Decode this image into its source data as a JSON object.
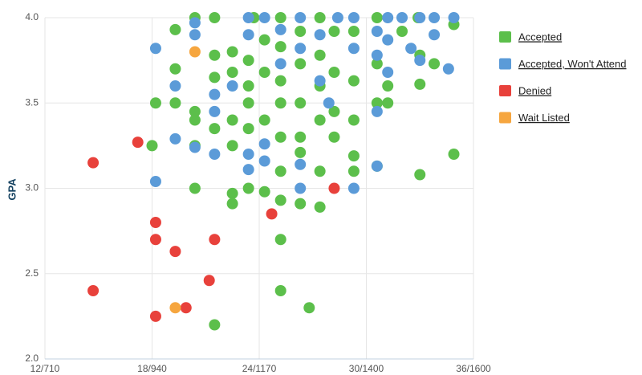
{
  "chart_data": {
    "type": "scatter",
    "y_label": "GPA",
    "xlim": [
      12,
      36
    ],
    "xticks": [
      {
        "value": 12,
        "label": "12/710"
      },
      {
        "value": 18,
        "label": "18/940"
      },
      {
        "value": 24,
        "label": "24/1170"
      },
      {
        "value": 30,
        "label": "30/1400"
      },
      {
        "value": 36,
        "label": "36/1600"
      }
    ],
    "ylim": [
      2,
      4
    ],
    "yticks": [
      {
        "value": 2,
        "label": "2.0"
      },
      2.5,
      {
        "value": 3,
        "label": "3.0"
      },
      3.5,
      {
        "value": 4,
        "label": "4.0"
      }
    ],
    "grid": true,
    "legend": "right",
    "series": [
      {
        "name": "Accepted",
        "color": "#5cbf4b",
        "x": [
          18.0,
          18.2,
          19.3,
          19.3,
          19.3,
          20.4,
          20.4,
          20.4,
          20.4,
          20.4,
          21.5,
          21.5,
          21.5,
          21.5,
          21.5,
          22.5,
          22.5,
          22.5,
          22.5,
          22.5,
          22.5,
          23.4,
          23.4,
          23.4,
          23.4,
          23.4,
          23.7,
          24.3,
          24.3,
          24.3,
          24.3,
          25.2,
          25.2,
          25.2,
          25.2,
          25.2,
          25.2,
          25.2,
          25.2,
          25.2,
          26.3,
          26.3,
          26.3,
          26.3,
          26.3,
          26.3,
          26.8,
          27.4,
          27.4,
          27.4,
          27.4,
          27.4,
          27.4,
          28.2,
          28.2,
          28.2,
          28.2,
          29.3,
          29.3,
          29.3,
          29.3,
          29.3,
          30.6,
          30.6,
          30.6,
          30.6,
          31.2,
          31.2,
          32.0,
          32.9,
          33.0,
          33.0,
          33.0,
          33.8,
          34.9,
          34.9
        ],
        "values": [
          3.25,
          3.5,
          3.93,
          3.7,
          3.5,
          3.0,
          3.45,
          3.4,
          3.25,
          4.0,
          4.0,
          3.78,
          3.65,
          3.35,
          2.2,
          3.8,
          3.68,
          3.4,
          3.25,
          2.97,
          2.91,
          3.75,
          3.6,
          3.5,
          3.35,
          3.0,
          4.0,
          3.87,
          3.68,
          3.4,
          2.98,
          4.0,
          3.83,
          3.63,
          3.5,
          3.3,
          3.1,
          2.93,
          2.7,
          2.4,
          3.92,
          3.73,
          3.5,
          3.3,
          3.21,
          2.91,
          2.3,
          4.0,
          3.78,
          3.6,
          3.4,
          3.1,
          2.89,
          3.92,
          3.68,
          3.45,
          3.3,
          3.92,
          3.63,
          3.4,
          3.19,
          3.1,
          4.0,
          3.73,
          3.5,
          3.13,
          3.6,
          3.5,
          3.92,
          4.0,
          3.78,
          3.61,
          3.08,
          3.73,
          3.96,
          3.2
        ]
      },
      {
        "name": "Accepted, Won't Attend",
        "color": "#5b9bd8",
        "x": [
          18.2,
          18.2,
          19.3,
          19.3,
          20.4,
          20.4,
          20.4,
          21.5,
          21.5,
          21.5,
          22.5,
          23.4,
          23.4,
          23.4,
          23.4,
          24.3,
          24.3,
          24.3,
          25.2,
          25.2,
          26.3,
          26.3,
          26.3,
          26.3,
          27.4,
          27.4,
          27.9,
          28.4,
          29.3,
          29.3,
          29.3,
          30.6,
          30.6,
          30.6,
          30.6,
          31.2,
          31.2,
          31.2,
          32.0,
          32.5,
          33.0,
          33.0,
          33.8,
          33.8,
          34.6,
          34.9
        ],
        "values": [
          3.82,
          3.04,
          3.6,
          3.29,
          3.97,
          3.9,
          3.24,
          3.55,
          3.45,
          3.2,
          3.6,
          4.0,
          3.9,
          3.2,
          3.11,
          4.0,
          3.26,
          3.16,
          3.93,
          3.73,
          4.0,
          3.82,
          3.14,
          3.0,
          3.9,
          3.63,
          3.5,
          4.0,
          4.0,
          3.82,
          3.0,
          3.92,
          3.78,
          3.45,
          3.13,
          4.0,
          3.87,
          3.68,
          4.0,
          3.82,
          4.0,
          3.75,
          4.0,
          3.9,
          3.7,
          4.0
        ]
      },
      {
        "name": "Denied",
        "color": "#e8413b",
        "x": [
          14.7,
          14.7,
          17.2,
          18.2,
          18.2,
          18.2,
          19.3,
          19.9,
          21.2,
          21.5,
          24.7,
          28.2
        ],
        "values": [
          3.15,
          2.4,
          3.27,
          2.8,
          2.7,
          2.25,
          2.63,
          2.3,
          2.46,
          2.7,
          2.85,
          3.0
        ]
      },
      {
        "name": "Wait Listed",
        "color": "#f6a63f",
        "x": [
          20.4,
          19.3
        ],
        "values": [
          3.8,
          2.3
        ]
      }
    ]
  }
}
